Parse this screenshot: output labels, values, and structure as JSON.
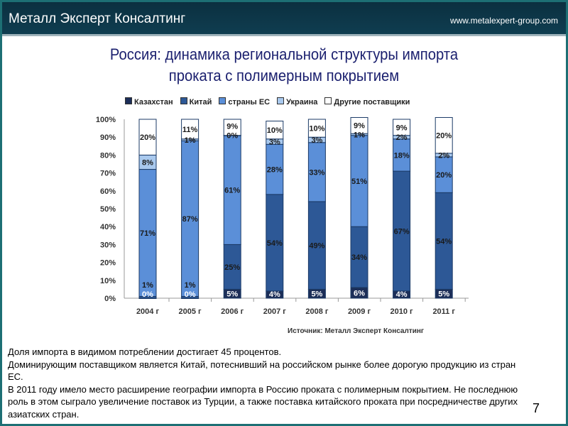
{
  "header": {
    "brand": "Металл Эксперт Консалтинг",
    "url": "www.metalexpert-group.com"
  },
  "slide": {
    "title_line1": "Россия: динамика региональной структуры импорта",
    "title_line2": "проката с полимерным покрытием",
    "page_number": "7",
    "paragraphs": [
      "Доля импорта в видимом потреблении достигает  45 процентов.",
      "Доминирующим поставщиком является Китай, потеснивший на российском рынке  более дорогую продукцию из стран ЕС.",
      "В 2011 году имело место расширение географии импорта в Россию проката с полимерным покрытием. Не последнюю роль в этом сыграло увеличение поставок из Турции, а также поставка китайского проката при посредничестве других азиатских стран."
    ]
  },
  "chart_data": {
    "type": "bar",
    "stacked": true,
    "source": "Источник: Металл Эксперт Консалтинг",
    "categories": [
      "2004 г",
      "2005 г",
      "2006 г",
      "2007 г",
      "2008 г",
      "2009 г",
      "2010 г",
      "2011 г"
    ],
    "yticks": [
      "0%",
      "10%",
      "20%",
      "30%",
      "40%",
      "50%",
      "60%",
      "70%",
      "80%",
      "90%",
      "100%"
    ],
    "ylim": [
      0,
      100
    ],
    "legend_position": "top",
    "series": [
      {
        "name": "Казахстан",
        "color": "#1c2e58",
        "values": [
          0,
          0,
          5,
          4,
          5,
          6,
          4,
          5
        ]
      },
      {
        "name": "Китай",
        "color": "#2d5896",
        "values": [
          1,
          1,
          25,
          54,
          49,
          34,
          67,
          54
        ]
      },
      {
        "name": "страны ЕС",
        "color": "#5b8fd8",
        "values": [
          71,
          87,
          61,
          28,
          33,
          51,
          18,
          20
        ]
      },
      {
        "name": "Украина",
        "color": "#a9c9ee",
        "values": [
          8,
          1,
          0,
          3,
          3,
          1,
          2,
          2
        ]
      },
      {
        "name": "Другие поставщики",
        "color": "#ffffff",
        "values": [
          20,
          11,
          9,
          10,
          10,
          9,
          9,
          20
        ]
      }
    ]
  }
}
